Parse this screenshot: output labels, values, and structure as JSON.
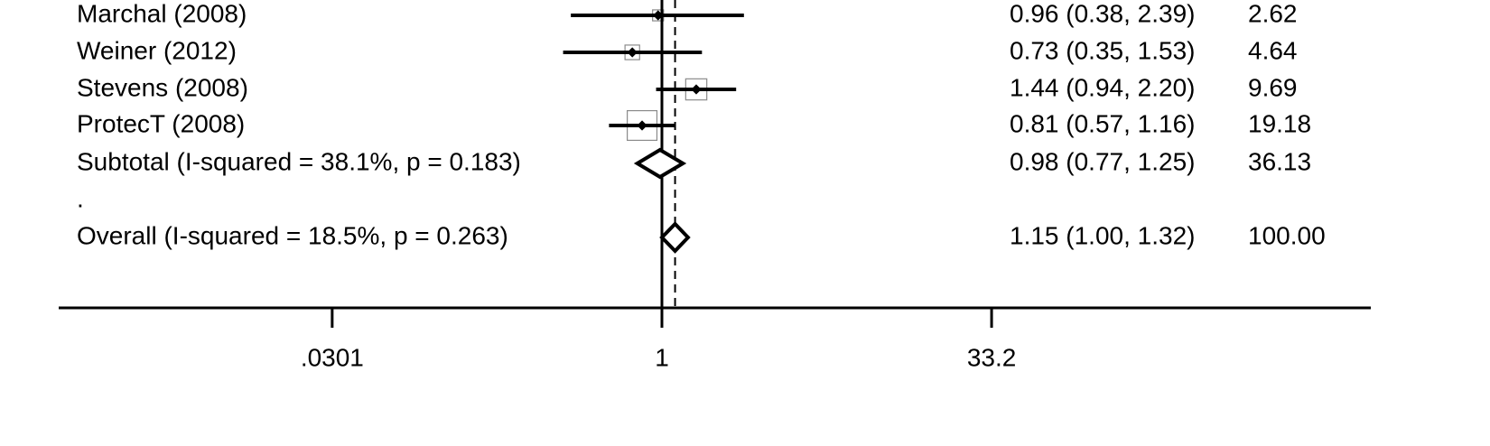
{
  "chart_data": {
    "type": "forest",
    "scale": "log",
    "null_value": 1,
    "overall_estimate": 1.15,
    "x_ticks": [
      {
        "value": 0.0301,
        "label": ".0301"
      },
      {
        "value": 1,
        "label": "1"
      },
      {
        "value": 33.2,
        "label": "33.2"
      }
    ],
    "rows": [
      {
        "label": "Marchal (2008)",
        "kind": "study",
        "es": 0.96,
        "lo": 0.38,
        "hi": 2.39,
        "ci_text": "0.96 (0.38, 2.39)",
        "weight": 2.62,
        "weight_text": "2.62"
      },
      {
        "label": "Weiner (2012)",
        "kind": "study",
        "es": 0.73,
        "lo": 0.35,
        "hi": 1.53,
        "ci_text": "0.73 (0.35, 1.53)",
        "weight": 4.64,
        "weight_text": "4.64"
      },
      {
        "label": "Stevens (2008)",
        "kind": "study",
        "es": 1.44,
        "lo": 0.94,
        "hi": 2.2,
        "ci_text": "1.44 (0.94, 2.20)",
        "weight": 9.69,
        "weight_text": "9.69"
      },
      {
        "label": "ProtecT (2008)",
        "kind": "study",
        "es": 0.81,
        "lo": 0.57,
        "hi": 1.16,
        "ci_text": "0.81 (0.57, 1.16)",
        "weight": 19.18,
        "weight_text": "19.18"
      },
      {
        "label": "Subtotal  (I-squared = 38.1%, p = 0.183)",
        "kind": "subtotal",
        "es": 0.98,
        "lo": 0.77,
        "hi": 1.25,
        "ci_text": "0.98 (0.77, 1.25)",
        "weight": 36.13,
        "weight_text": "36.13"
      },
      {
        "label": ".",
        "kind": "spacer"
      },
      {
        "label": "Overall  (I-squared = 18.5%, p = 0.263)",
        "kind": "overall",
        "es": 1.15,
        "lo": 1.0,
        "hi": 1.32,
        "ci_text": "1.15 (1.00, 1.32)",
        "weight": 100.0,
        "weight_text": "100.00"
      }
    ]
  }
}
